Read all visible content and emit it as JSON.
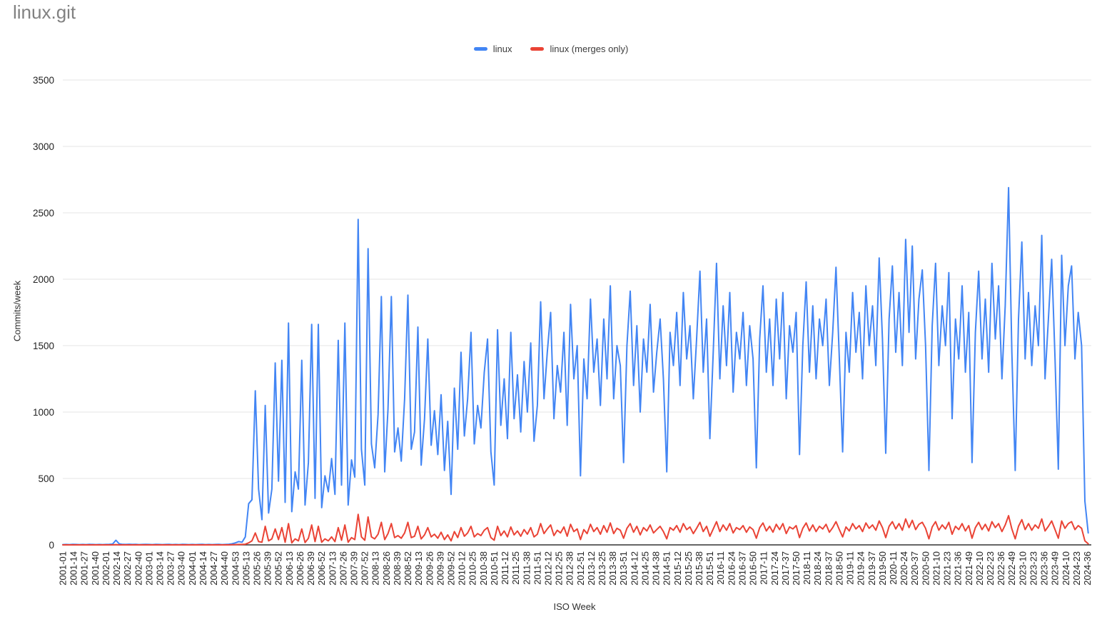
{
  "title": "linux.git",
  "legend": {
    "position": "top",
    "items": [
      {
        "label": "linux",
        "color": "#4285F4"
      },
      {
        "label": "linux (merges only)",
        "color": "#EA4335"
      }
    ]
  },
  "y_axis": {
    "title": "Commits/week",
    "ticks": [
      0,
      500,
      1000,
      1500,
      2000,
      2500,
      3000,
      3500
    ],
    "range": [
      0,
      3500
    ]
  },
  "x_axis": {
    "title": "ISO Week",
    "tick_interval_weeks": 13,
    "tick_labels": [
      "2001-01",
      "2001-14",
      "2001-27",
      "2001-40",
      "2002-01",
      "2002-14",
      "2002-27",
      "2002-40",
      "2003-01",
      "2003-14",
      "2003-27",
      "2003-40",
      "2004-01",
      "2004-14",
      "2004-27",
      "2004-40",
      "2004-53",
      "2005-13",
      "2005-26",
      "2005-39",
      "2005-52",
      "2006-13",
      "2006-26",
      "2006-39",
      "2006-52",
      "2007-13",
      "2007-26",
      "2007-39",
      "2007-52",
      "2008-13",
      "2008-26",
      "2008-39",
      "2008-52",
      "2009-13",
      "2009-26",
      "2009-39",
      "2009-52",
      "2010-12",
      "2010-25",
      "2010-38",
      "2010-51",
      "2011-12",
      "2011-25",
      "2011-38",
      "2011-51",
      "2012-12",
      "2012-25",
      "2012-38",
      "2012-51",
      "2013-12",
      "2013-25",
      "2013-38",
      "2013-51",
      "2014-12",
      "2014-25",
      "2014-38",
      "2014-51",
      "2015-12",
      "2015-25",
      "2015-38",
      "2015-51",
      "2016-11",
      "2016-24",
      "2016-37",
      "2016-50",
      "2017-11",
      "2017-24",
      "2017-37",
      "2017-50",
      "2018-11",
      "2018-24",
      "2018-37",
      "2018-50",
      "2019-11",
      "2019-24",
      "2019-37",
      "2019-50",
      "2020-11",
      "2020-24",
      "2020-37",
      "2020-50",
      "2021-10",
      "2021-23",
      "2021-36",
      "2021-49",
      "2022-10",
      "2022-23",
      "2022-36",
      "2022-49",
      "2023-10",
      "2023-23",
      "2023-36",
      "2023-49",
      "2024-10",
      "2024-23",
      "2024-36"
    ]
  },
  "chart_data": {
    "type": "line",
    "title": "linux.git",
    "xlabel": "ISO Week",
    "ylabel": "Commits/week",
    "ylim": [
      0,
      3500
    ],
    "grid": true,
    "legend_position": "top",
    "x_unit": "ISO week index counted from 2001-01 (labels every 13 weeks)",
    "x_start": 0,
    "x_step": 4,
    "x_max": 1236,
    "series": [
      {
        "name": "linux",
        "color": "#4285F4",
        "values": [
          2,
          3,
          2,
          4,
          3,
          2,
          3,
          2,
          4,
          3,
          2,
          3,
          2,
          3,
          4,
          6,
          35,
          8,
          4,
          3,
          5,
          3,
          4,
          2,
          3,
          4,
          3,
          2,
          4,
          3,
          2,
          3,
          4,
          2,
          3,
          2,
          4,
          3,
          2,
          3,
          2,
          3,
          4,
          2,
          3,
          2,
          3,
          4,
          2,
          3,
          5,
          8,
          15,
          25,
          20,
          60,
          310,
          340,
          1160,
          420,
          190,
          1050,
          240,
          420,
          1370,
          480,
          1390,
          320,
          1670,
          250,
          550,
          420,
          1390,
          300,
          620,
          1660,
          350,
          1660,
          280,
          520,
          400,
          650,
          380,
          1540,
          450,
          1670,
          300,
          640,
          510,
          2450,
          720,
          450,
          2230,
          760,
          580,
          980,
          1870,
          550,
          1020,
          1870,
          700,
          880,
          630,
          1100,
          1880,
          720,
          850,
          1640,
          600,
          950,
          1550,
          750,
          1010,
          680,
          1130,
          560,
          930,
          380,
          1180,
          720,
          1450,
          820,
          1100,
          1600,
          760,
          1050,
          880,
          1300,
          1550,
          700,
          450,
          1620,
          900,
          1250,
          800,
          1600,
          950,
          1280,
          850,
          1380,
          1000,
          1520,
          780,
          1050,
          1830,
          1100,
          1450,
          1750,
          950,
          1350,
          1150,
          1600,
          900,
          1810,
          1250,
          1500,
          520,
          1400,
          1100,
          1850,
          1300,
          1550,
          1050,
          1700,
          1250,
          1950,
          1100,
          1500,
          1350,
          620,
          1500,
          1910,
          1200,
          1650,
          1000,
          1550,
          1300,
          1810,
          1150,
          1450,
          1700,
          1250,
          550,
          1600,
          1350,
          1750,
          1200,
          1900,
          1400,
          1650,
          1100,
          1550,
          2060,
          1300,
          1700,
          800,
          1450,
          2120,
          1250,
          1800,
          1350,
          1900,
          1150,
          1600,
          1400,
          1750,
          1200,
          1650,
          1400,
          580,
          1550,
          1950,
          1300,
          1700,
          1200,
          1850,
          1400,
          1900,
          1100,
          1650,
          1450,
          1750,
          680,
          1500,
          1980,
          1300,
          1800,
          1250,
          1700,
          1500,
          1850,
          1200,
          1600,
          2090,
          1400,
          700,
          1600,
          1300,
          1900,
          1450,
          1750,
          1250,
          1950,
          1500,
          1800,
          1350,
          2160,
          1550,
          690,
          1700,
          2100,
          1450,
          1900,
          1350,
          2300,
          1600,
          2250,
          1400,
          1850,
          2070,
          1500,
          560,
          1650,
          2120,
          1350,
          1800,
          1500,
          2050,
          950,
          1700,
          1400,
          1950,
          1300,
          1750,
          620,
          1600,
          2060,
          1400,
          1850,
          1300,
          2120,
          1550,
          1950,
          1250,
          1800,
          2690,
          1450,
          560,
          1700,
          2280,
          1400,
          1900,
          1350,
          1800,
          1500,
          2330,
          1250,
          1700,
          2150,
          1400,
          570,
          2180,
          1500,
          1950,
          2100,
          1400,
          1750,
          1500,
          330,
          90
        ]
      },
      {
        "name": "linux (merges only)",
        "color": "#EA4335",
        "values": [
          0,
          0,
          0,
          0,
          0,
          0,
          0,
          0,
          0,
          0,
          0,
          0,
          0,
          0,
          0,
          0,
          2,
          0,
          0,
          0,
          0,
          0,
          0,
          0,
          0,
          0,
          0,
          0,
          0,
          0,
          0,
          0,
          0,
          0,
          0,
          0,
          0,
          0,
          0,
          0,
          0,
          0,
          0,
          0,
          0,
          0,
          0,
          0,
          0,
          0,
          0,
          1,
          2,
          3,
          3,
          5,
          15,
          30,
          90,
          25,
          20,
          140,
          30,
          45,
          120,
          40,
          130,
          20,
          160,
          15,
          45,
          30,
          120,
          18,
          50,
          150,
          25,
          140,
          20,
          45,
          30,
          60,
          25,
          130,
          35,
          150,
          20,
          55,
          40,
          230,
          60,
          35,
          210,
          60,
          45,
          80,
          170,
          40,
          85,
          160,
          55,
          70,
          50,
          90,
          170,
          55,
          65,
          140,
          45,
          75,
          130,
          60,
          80,
          50,
          95,
          40,
          75,
          30,
          100,
          55,
          130,
          65,
          90,
          140,
          60,
          85,
          70,
          110,
          130,
          55,
          35,
          140,
          70,
          105,
          60,
          135,
          75,
          105,
          65,
          115,
          80,
          130,
          60,
          80,
          160,
          85,
          120,
          150,
          70,
          110,
          90,
          135,
          65,
          155,
          100,
          120,
          40,
          115,
          85,
          155,
          100,
          130,
          80,
          145,
          95,
          165,
          85,
          125,
          110,
          50,
          125,
          160,
          95,
          140,
          75,
          130,
          105,
          150,
          90,
          115,
          140,
          100,
          45,
          130,
          110,
          145,
          95,
          160,
          115,
          135,
          85,
          125,
          170,
          100,
          140,
          65,
          120,
          175,
          100,
          150,
          110,
          160,
          90,
          130,
          115,
          145,
          95,
          135,
          115,
          50,
          130,
          165,
          105,
          140,
          95,
          155,
          115,
          160,
          85,
          135,
          120,
          145,
          55,
          125,
          165,
          105,
          150,
          100,
          140,
          120,
          155,
          95,
          130,
          175,
          115,
          60,
          135,
          105,
          160,
          120,
          145,
          100,
          165,
          125,
          150,
          110,
          180,
          130,
          55,
          140,
          175,
          120,
          160,
          110,
          195,
          130,
          185,
          115,
          155,
          170,
          125,
          45,
          135,
          175,
          110,
          150,
          120,
          170,
          80,
          140,
          115,
          160,
          105,
          145,
          50,
          130,
          170,
          115,
          155,
          105,
          175,
          130,
          160,
          100,
          150,
          220,
          120,
          45,
          140,
          190,
          115,
          160,
          110,
          150,
          125,
          195,
          105,
          140,
          180,
          115,
          50,
          180,
          125,
          160,
          175,
          115,
          145,
          125,
          30,
          8
        ]
      }
    ]
  },
  "colors": {
    "background": "#ffffff",
    "grid": "#e6e6e6",
    "baseline": "#333333",
    "tick_text": "#222222",
    "axis_title_text": "#2e2e2e",
    "title_text": "#818181"
  }
}
